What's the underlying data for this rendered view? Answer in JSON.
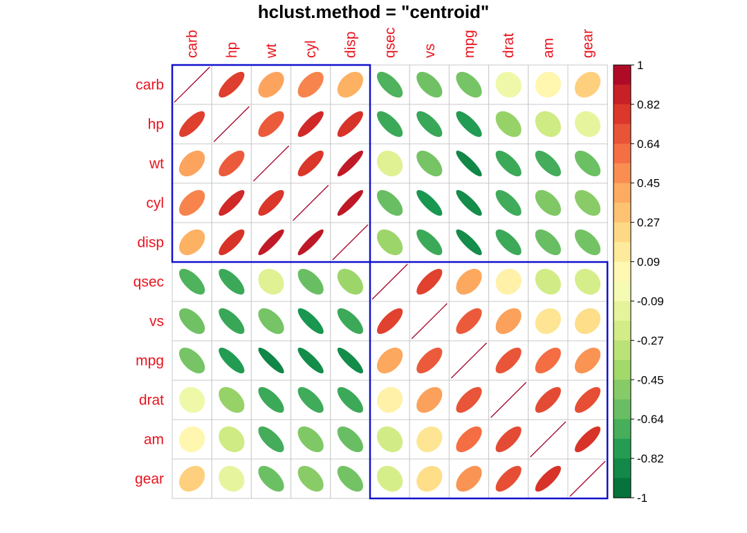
{
  "chart_data": {
    "type": "heatmap",
    "title": "hclust.method = \"centroid\"",
    "variables": [
      "carb",
      "hp",
      "wt",
      "cyl",
      "disp",
      "qsec",
      "vs",
      "mpg",
      "drat",
      "am",
      "gear"
    ],
    "matrix": [
      [
        1.0,
        0.75,
        0.43,
        0.53,
        0.39,
        -0.66,
        -0.57,
        -0.55,
        -0.09,
        0.06,
        0.27
      ],
      [
        0.75,
        1.0,
        0.66,
        0.83,
        0.79,
        -0.71,
        -0.72,
        -0.78,
        -0.45,
        -0.24,
        -0.13
      ],
      [
        0.43,
        0.66,
        1.0,
        0.78,
        0.89,
        -0.17,
        -0.55,
        -0.87,
        -0.71,
        -0.69,
        -0.58
      ],
      [
        0.53,
        0.83,
        0.78,
        1.0,
        0.9,
        -0.59,
        -0.81,
        -0.85,
        -0.7,
        -0.52,
        -0.49
      ],
      [
        0.39,
        0.79,
        0.89,
        0.9,
        1.0,
        -0.43,
        -0.71,
        -0.85,
        -0.71,
        -0.59,
        -0.56
      ],
      [
        -0.66,
        -0.71,
        -0.17,
        -0.59,
        -0.43,
        1.0,
        0.74,
        0.42,
        0.09,
        -0.23,
        -0.21
      ],
      [
        -0.57,
        -0.72,
        -0.55,
        -0.81,
        -0.71,
        0.74,
        1.0,
        0.66,
        0.44,
        0.17,
        0.21
      ],
      [
        -0.55,
        -0.78,
        -0.87,
        -0.85,
        -0.85,
        0.42,
        0.66,
        1.0,
        0.68,
        0.6,
        0.48
      ],
      [
        -0.09,
        -0.45,
        -0.71,
        -0.7,
        -0.71,
        0.09,
        0.44,
        0.68,
        1.0,
        0.71,
        0.7
      ],
      [
        0.06,
        -0.24,
        -0.69,
        -0.52,
        -0.59,
        -0.23,
        0.17,
        0.6,
        0.71,
        1.0,
        0.79
      ],
      [
        0.27,
        -0.13,
        -0.58,
        -0.49,
        -0.56,
        -0.21,
        0.21,
        0.48,
        0.7,
        0.79,
        1.0
      ]
    ],
    "clusters": [
      {
        "from": "carb",
        "to": "disp"
      },
      {
        "from": "qsec",
        "to": "gear"
      }
    ],
    "legend": {
      "placement": "right",
      "ticks": [
        "1",
        "0.82",
        "0.64",
        "0.45",
        "0.27",
        "0.09",
        "-0.09",
        "-0.27",
        "-0.45",
        "-0.64",
        "-0.82",
        "-1"
      ],
      "range": [
        -1,
        1
      ]
    },
    "colors": {
      "label": "#e8141f",
      "cluster_box": "#1010cc",
      "grid": "#c8c8c8",
      "palette_high_to_low": [
        "#a50026",
        "#d73027",
        "#f46d43",
        "#fdae61",
        "#fee08b",
        "#ffffbf",
        "#d9ef8b",
        "#a6d96a",
        "#66bd63",
        "#1a9850",
        "#006837"
      ]
    }
  }
}
